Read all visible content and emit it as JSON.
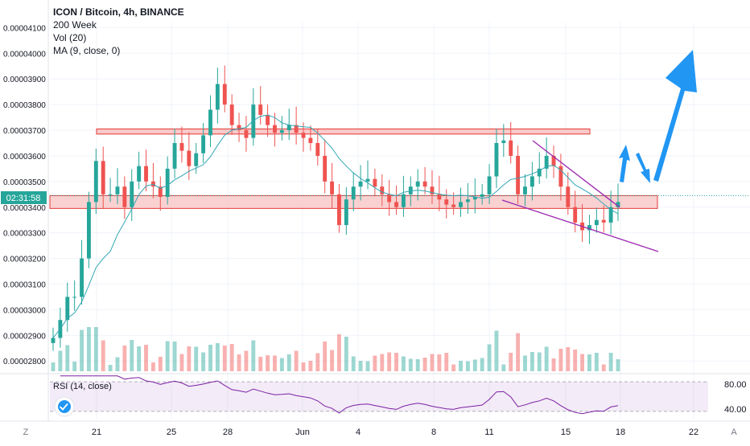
{
  "header": {
    "symbol_line": "ICON / Bitcoin, 4h, BINANCE",
    "indicators": [
      "200 Week",
      "Vol (20)",
      "MA (9, close, 0)"
    ]
  },
  "price_axis": {
    "ticks": [
      "0.00004100",
      "0.00004000",
      "0.00003900",
      "0.00003800",
      "0.00003700",
      "0.00003600",
      "0.00003500",
      "0.00003400",
      "0.00003300",
      "0.00003200",
      "0.00003100",
      "0.00003000",
      "0.00002900",
      "0.00002800"
    ],
    "countdown": "02:31:58"
  },
  "rsi": {
    "label": "RSI (14, close)",
    "ticks": [
      "80.00",
      "40.00"
    ]
  },
  "time_axis": {
    "labels": [
      "21",
      "25",
      "28",
      "Jun",
      "4",
      "8",
      "11",
      "15",
      "18",
      "22"
    ],
    "left_button": "Z",
    "right_button": "A"
  },
  "colors": {
    "up": "#26a69a",
    "down": "#ef5350",
    "ma": "#31a7b4",
    "rsi": "#7b1fa2",
    "zone_fill": "#f8c9c9",
    "zone_stroke": "#e53935",
    "wedge": "#9c27b0",
    "arrow": "#2196f3",
    "countdown_bg": "#26a69a"
  },
  "chart_data": {
    "type": "candlestick",
    "title": "ICON / Bitcoin, 4h, BINANCE",
    "x_labels": [
      "21",
      "25",
      "28",
      "Jun",
      "4",
      "8",
      "11",
      "15",
      "18",
      "22"
    ],
    "ylim": [
      2.76e-05,
      4.12e-05
    ],
    "resistance_zone": [
      3.685e-05,
      3.705e-05
    ],
    "support_zone": [
      3.395e-05,
      3.445e-05
    ],
    "ma_period": 9,
    "rsi_range": [
      30,
      90
    ],
    "rsi_bands": [
      40,
      80
    ],
    "series": [
      {
        "name": "close",
        "values": [
          2.89e-05,
          2.96e-05,
          3.05e-05,
          3.05e-05,
          3.2e-05,
          3.42e-05,
          3.58e-05,
          3.45e-05,
          3.45e-05,
          3.48e-05,
          3.4e-05,
          3.5e-05,
          3.56e-05,
          3.5e-05,
          3.48e-05,
          3.44e-05,
          3.55e-05,
          3.65e-05,
          3.62e-05,
          3.56e-05,
          3.61e-05,
          3.68e-05,
          3.78e-05,
          3.88e-05,
          3.8e-05,
          3.72e-05,
          3.7e-05,
          3.67e-05,
          3.8e-05,
          3.76e-05,
          3.72e-05,
          3.69e-05,
          3.7e-05,
          3.72e-05,
          3.69e-05,
          3.67e-05,
          3.65e-05,
          3.6e-05,
          3.5e-05,
          3.45e-05,
          3.33e-05,
          3.43e-05,
          3.48e-05,
          3.5e-05,
          3.51e-05,
          3.48e-05,
          3.45e-05,
          3.42e-05,
          3.4e-05,
          3.45e-05,
          3.48e-05,
          3.5e-05,
          3.48e-05,
          3.45e-05,
          3.43e-05,
          3.41e-05,
          3.4e-05,
          3.42e-05,
          3.43e-05,
          3.44e-05,
          3.45e-05,
          3.52e-05,
          3.65e-05,
          3.66e-05,
          3.6e-05,
          3.45e-05,
          3.48e-05,
          3.52e-05,
          3.55e-05,
          3.6e-05,
          3.56e-05,
          3.48e-05,
          3.4e-05,
          3.34e-05,
          3.31e-05,
          3.33e-05,
          3.35e-05,
          3.34e-05,
          3.4e-05,
          3.42e-05
        ]
      }
    ]
  }
}
